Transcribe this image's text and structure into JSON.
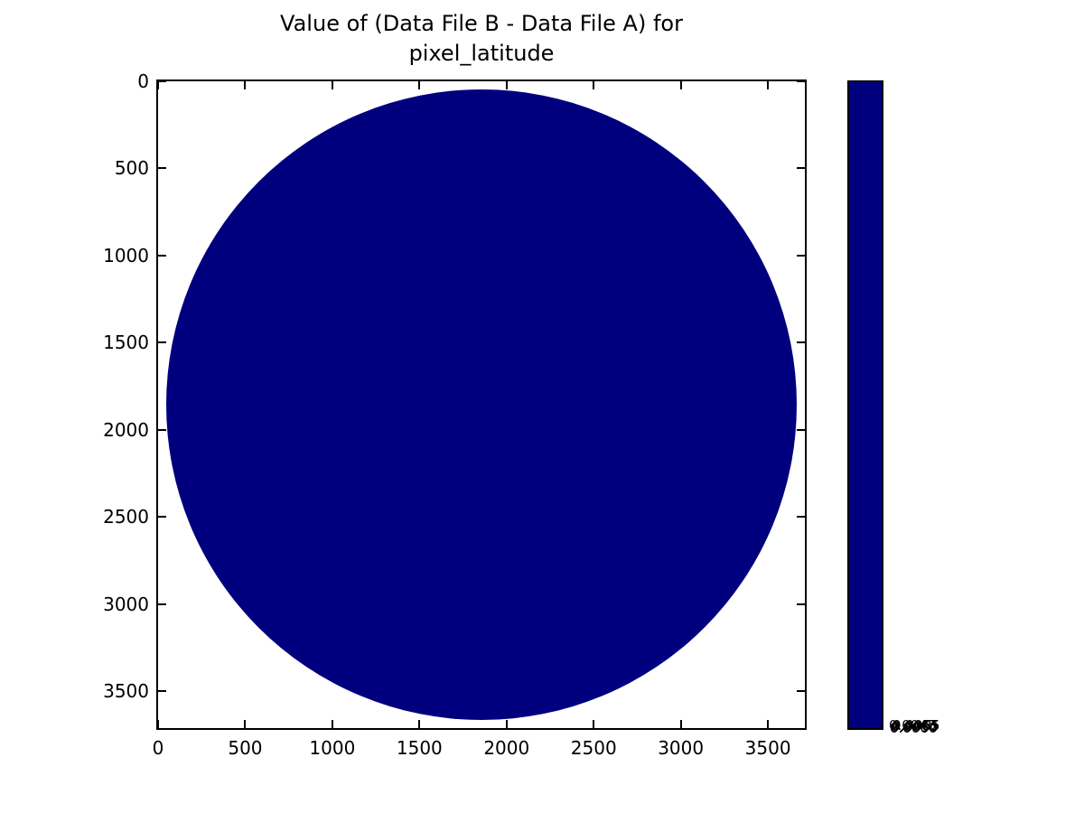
{
  "figure": {
    "background_color": "#ffffff",
    "title_line1": "Value of (Data File B - Data File A) for",
    "title_line2": "pixel_latitude"
  },
  "chart_data": {
    "type": "heatmap",
    "title": "Value of (Data File B - Data File A) for pixel_latitude",
    "xlabel": "",
    "ylabel": "",
    "grid": false,
    "xlim": [
      0,
      3712
    ],
    "ylim": [
      3712,
      0
    ],
    "x_ticks": [
      0,
      500,
      1000,
      1500,
      2000,
      2500,
      3000,
      3500
    ],
    "y_ticks": [
      0,
      500,
      1000,
      1500,
      2000,
      2500,
      3000,
      3500
    ],
    "tick_direction": "in",
    "description": "Full-disk image plot: a uniform dark-navy circular Earth disk (constant difference value) on a white background, pixel grid 3712x3712",
    "disk": {
      "center_x": 1856,
      "center_y": 1856,
      "radius": 1810,
      "color": "#00007f"
    },
    "colorbar": {
      "fill_color": "#00007f",
      "tick_labels_overlapping": [
        "0.0045",
        "0.0050",
        "0.0055",
        "0.0060",
        "0.0065"
      ],
      "note": "all colorbar tick labels are rendered overlapping at the bottom of the bar"
    },
    "colors": {
      "disk": "#00007f",
      "axes_edge": "#000000",
      "text": "#000000",
      "background": "#ffffff"
    }
  }
}
